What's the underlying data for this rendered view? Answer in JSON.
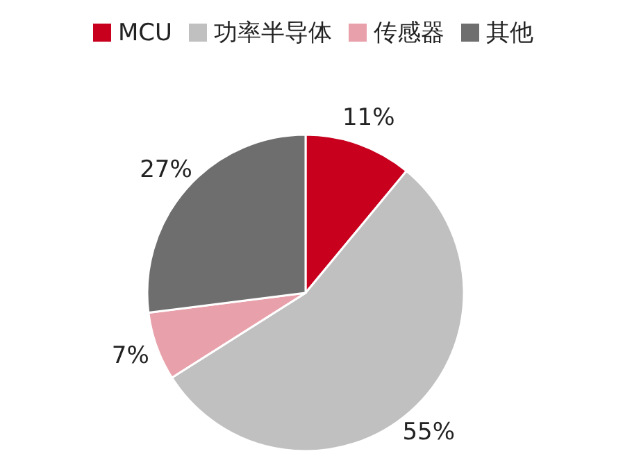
{
  "chart_data": {
    "type": "pie",
    "categories": [
      "MCU",
      "功率半导体",
      "传感器",
      "其他"
    ],
    "values": [
      11,
      55,
      7,
      27
    ],
    "value_labels": [
      "11%",
      "55%",
      "7%",
      "27%"
    ],
    "colors": [
      "#c8001e",
      "#c0c0c0",
      "#e8a0aa",
      "#6e6e6e"
    ],
    "legend": "top"
  }
}
